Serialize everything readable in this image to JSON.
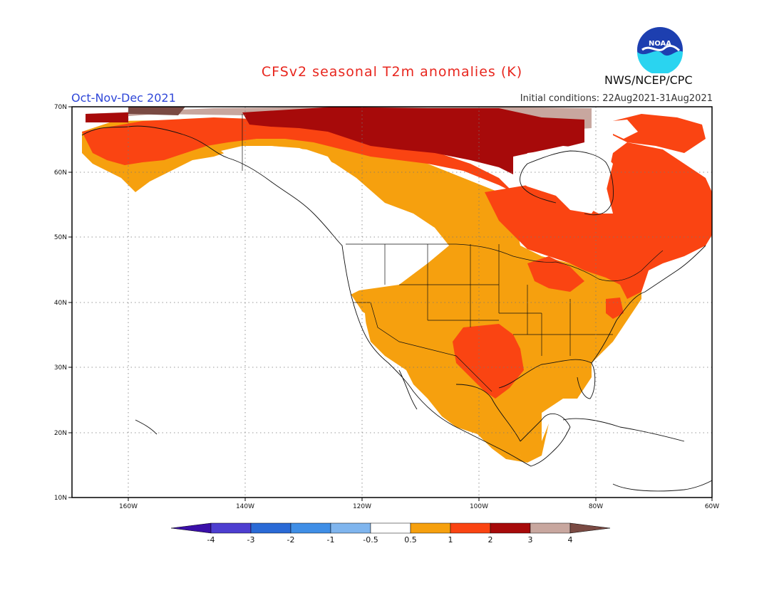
{
  "header": {
    "title": "CFSv2 seasonal T2m anomalies (K)",
    "period": "Oct-Nov-Dec 2021",
    "init_conditions": "Initial conditions: 22Aug2021-31Aug2021",
    "agency": "NWS/NCEP/CPC",
    "logo_text": "NOAA"
  },
  "map": {
    "lon_range": [
      -172,
      -60
    ],
    "lat_range": [
      10,
      70
    ],
    "lon_ticks": [
      "160W",
      "140W",
      "120W",
      "100W",
      "80W",
      "60W"
    ],
    "lat_ticks": [
      "10N",
      "20N",
      "30N",
      "40N",
      "50N",
      "60N",
      "70N"
    ],
    "gridlines": true
  },
  "colorbar": {
    "labels": [
      "-4",
      "-3",
      "-2",
      "-1",
      "-0.5",
      "0.5",
      "1",
      "2",
      "3",
      "4"
    ],
    "colors": [
      "#3a0fa8",
      "#4d3ed0",
      "#2a6ad6",
      "#3f8ee6",
      "#7fb5ee",
      "#ffffff",
      "#f6a00e",
      "#fa4412",
      "#a70a0a",
      "#c8a79f",
      "#7a4a43"
    ]
  }
}
